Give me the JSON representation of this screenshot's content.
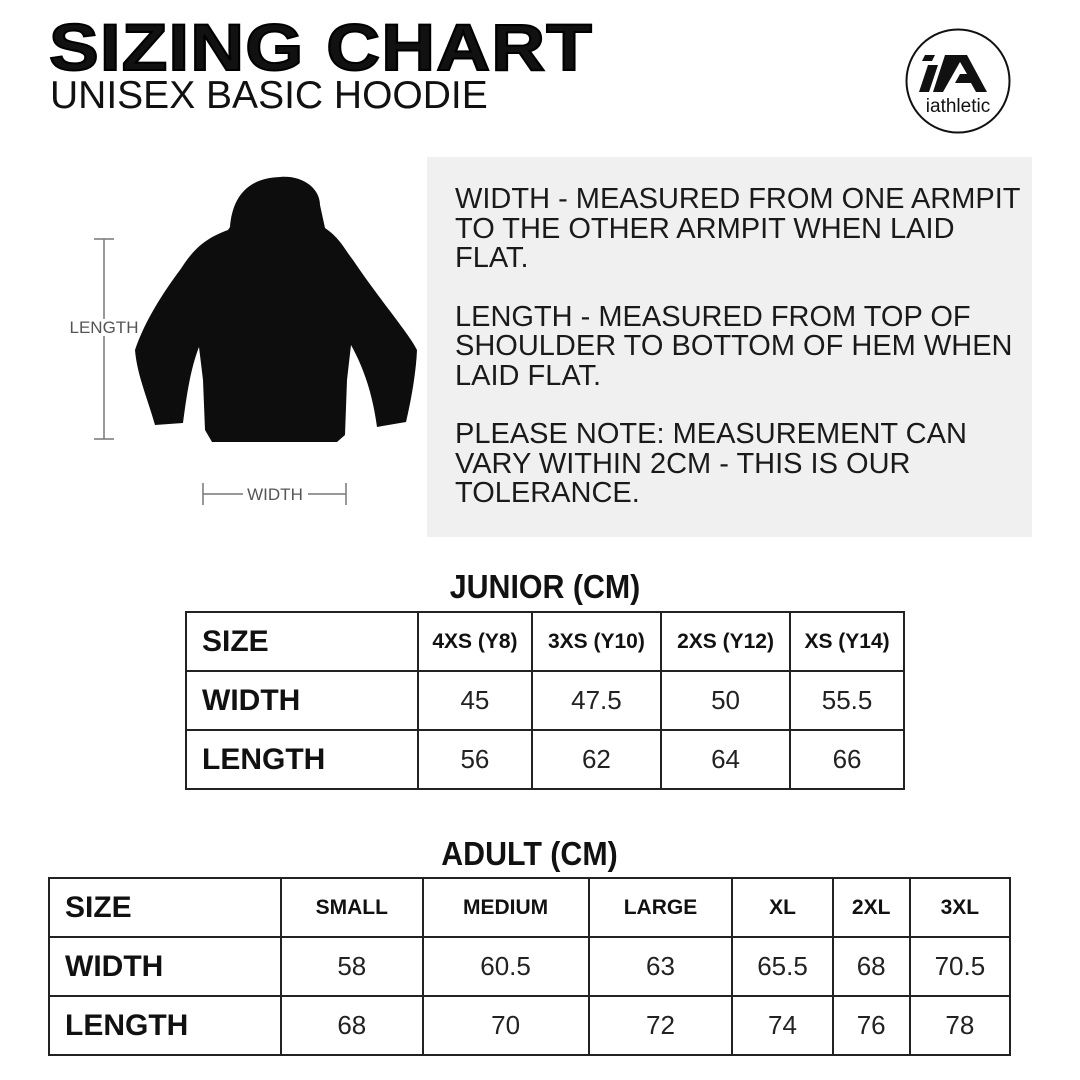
{
  "header": {
    "title": "SIZING CHART",
    "subtitle": "UNISEX BASIC HOODIE",
    "logo_text": "iAthletic",
    "logo_mark": "iA"
  },
  "diagram": {
    "length_label": "LENGTH",
    "width_label": "WIDTH"
  },
  "info": {
    "paragraphs": [
      "WIDTH - MEASURED FROM ONE ARMPIT TO THE OTHER ARMPIT WHEN LAID FLAT.",
      "LENGTH - MEASURED FROM TOP OF SHOULDER TO BOTTOM OF HEM WHEN LAID FLAT.",
      "PLEASE NOTE: MEASUREMENT CAN VARY WITHIN 2CM - THIS IS OUR TOLERANCE."
    ]
  },
  "tables": {
    "junior": {
      "title": "JUNIOR (CM)",
      "header": [
        "SIZE",
        "4XS (Y8)",
        "3XS (Y10)",
        "2XS (Y12)",
        "XS (Y14)"
      ],
      "rows": [
        [
          "WIDTH",
          "45",
          "47.5",
          "50",
          "55.5"
        ],
        [
          "LENGTH",
          "56",
          "62",
          "64",
          "66"
        ]
      ]
    },
    "adult": {
      "title": "ADULT (CM)",
      "header": [
        "SIZE",
        "SMALL",
        "MEDIUM",
        "LARGE",
        "XL",
        "2XL",
        "3XL"
      ],
      "rows": [
        [
          "WIDTH",
          "58",
          "60.5",
          "63",
          "65.5",
          "68",
          "70.5"
        ],
        [
          "LENGTH",
          "68",
          "70",
          "72",
          "74",
          "76",
          "78"
        ]
      ]
    }
  }
}
